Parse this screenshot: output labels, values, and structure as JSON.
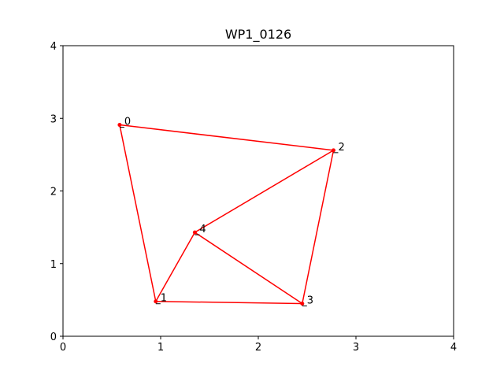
{
  "chart_data": {
    "type": "scatter",
    "title": "WP1_0126",
    "xlabel": "",
    "ylabel": "",
    "xlim": [
      0,
      4
    ],
    "ylim": [
      0,
      4
    ],
    "xticks": [
      "0",
      "1",
      "2",
      "3",
      "4"
    ],
    "yticks": [
      "0",
      "1",
      "2",
      "3",
      "4"
    ],
    "grid": false,
    "color": "#ff0000",
    "points": [
      {
        "label": "0",
        "x": 0.58,
        "y": 2.91
      },
      {
        "label": "1",
        "x": 0.95,
        "y": 0.48
      },
      {
        "label": "2",
        "x": 2.77,
        "y": 2.56
      },
      {
        "label": "3",
        "x": 2.45,
        "y": 0.45
      },
      {
        "label": "4",
        "x": 1.35,
        "y": 1.43
      }
    ],
    "edges": [
      [
        0,
        2
      ],
      [
        0,
        1
      ],
      [
        1,
        3
      ],
      [
        1,
        4
      ],
      [
        4,
        2
      ],
      [
        4,
        3
      ],
      [
        3,
        2
      ]
    ]
  }
}
